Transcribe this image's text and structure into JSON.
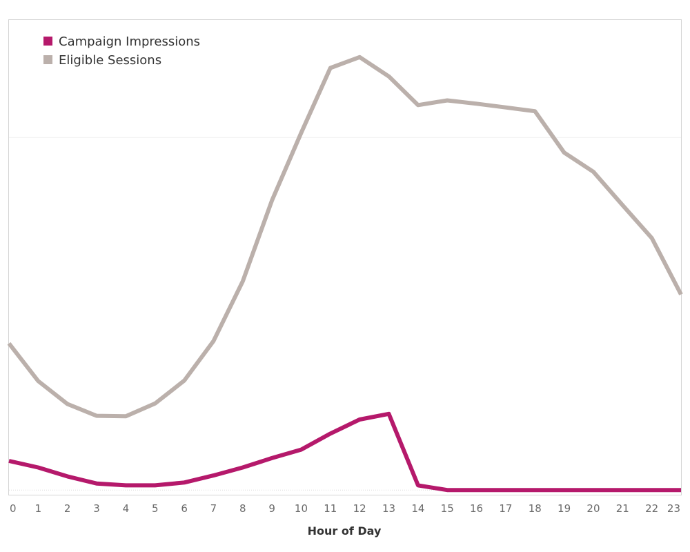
{
  "chart_data": {
    "type": "line",
    "title": "",
    "xlabel": "Hour of Day",
    "ylabel": "",
    "x": [
      0,
      1,
      2,
      3,
      4,
      5,
      6,
      7,
      8,
      9,
      10,
      11,
      12,
      13,
      14,
      15,
      16,
      17,
      18,
      19,
      20,
      21,
      22,
      23
    ],
    "ylim": [
      -10,
      1000
    ],
    "gridlines_y": [
      0,
      750
    ],
    "legend_position": "top-left",
    "series": [
      {
        "name": "Campaign Impressions",
        "color": "#b5196b",
        "values": [
          62,
          48,
          29,
          14,
          10,
          10,
          16,
          31,
          48,
          68,
          86,
          120,
          150,
          162,
          10,
          0,
          0,
          0,
          0,
          0,
          0,
          0,
          0,
          0
        ]
      },
      {
        "name": "Eligible Sessions",
        "color": "#bbb0ab",
        "values": [
          312,
          232,
          183,
          158,
          157,
          184,
          233,
          317,
          444,
          616,
          760,
          898,
          921,
          880,
          819,
          829,
          822,
          814,
          806,
          718,
          677,
          606,
          536,
          416
        ]
      }
    ]
  }
}
